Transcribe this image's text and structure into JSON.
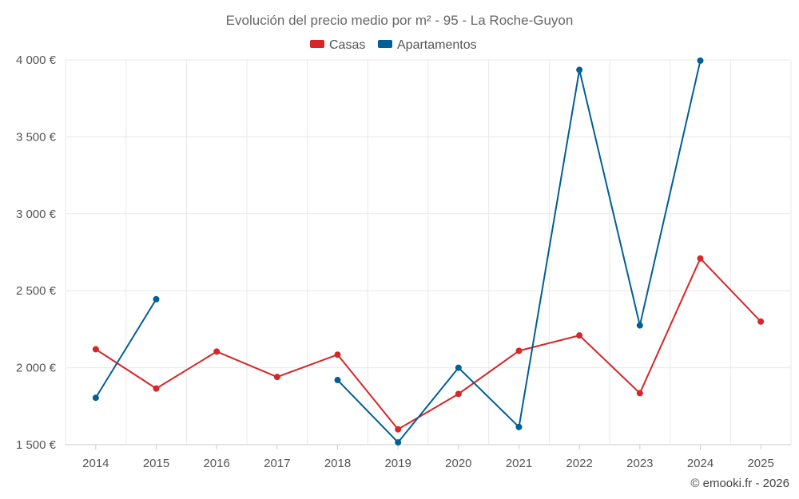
{
  "chart_data": {
    "type": "line",
    "title": "Evolución del precio medio por m² - 95 - La Roche-Guyon",
    "categories": [
      "2014",
      "2015",
      "2016",
      "2017",
      "2018",
      "2019",
      "2020",
      "2021",
      "2022",
      "2023",
      "2024",
      "2025"
    ],
    "y_ticks": [
      "1 500 €",
      "2 000 €",
      "2 500 €",
      "3 000 €",
      "3 500 €",
      "4 000 €"
    ],
    "y_tick_values": [
      1500,
      2000,
      2500,
      3000,
      3500,
      4000
    ],
    "ylim": [
      1500,
      4000
    ],
    "grid": true,
    "legend_position": "top-center",
    "series": [
      {
        "name": "Casas",
        "color": "#d62728",
        "values": [
          2120,
          1865,
          2105,
          1940,
          2085,
          1600,
          1830,
          2110,
          2210,
          1835,
          2710,
          2300
        ]
      },
      {
        "name": "Apartamentos",
        "color": "#005f96",
        "values": [
          1805,
          2445,
          null,
          null,
          1920,
          1515,
          2000,
          1615,
          3935,
          2275,
          3995,
          null
        ]
      }
    ]
  },
  "credit": "© emooki.fr - 2026"
}
